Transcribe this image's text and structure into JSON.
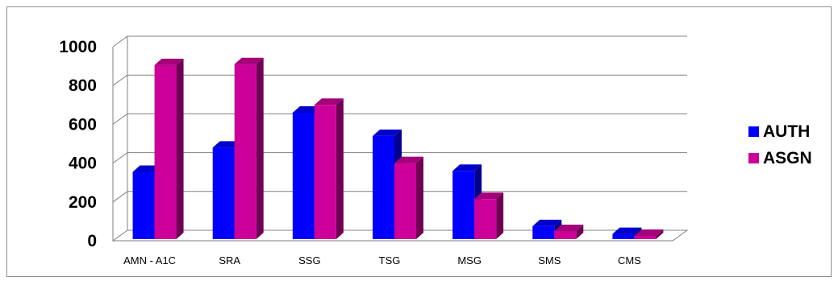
{
  "chart_data": {
    "type": "bar",
    "categories": [
      "AMN - A1C",
      "SRA",
      "SSG",
      "TSG",
      "MSG",
      "SMS",
      "CMS"
    ],
    "series": [
      {
        "name": "AUTH",
        "values": [
          355,
          480,
          660,
          540,
          360,
          75,
          35
        ],
        "color": "#0000ff"
      },
      {
        "name": "ASGN",
        "values": [
          905,
          910,
          700,
          400,
          215,
          50,
          25
        ],
        "color": "#cc0099"
      }
    ],
    "ylim": [
      0,
      1000
    ],
    "yticks": [
      "0",
      "200",
      "400",
      "600",
      "800",
      "1000"
    ],
    "grid": true,
    "legend_position": "right",
    "title": "",
    "xlabel": "",
    "ylabel": ""
  }
}
